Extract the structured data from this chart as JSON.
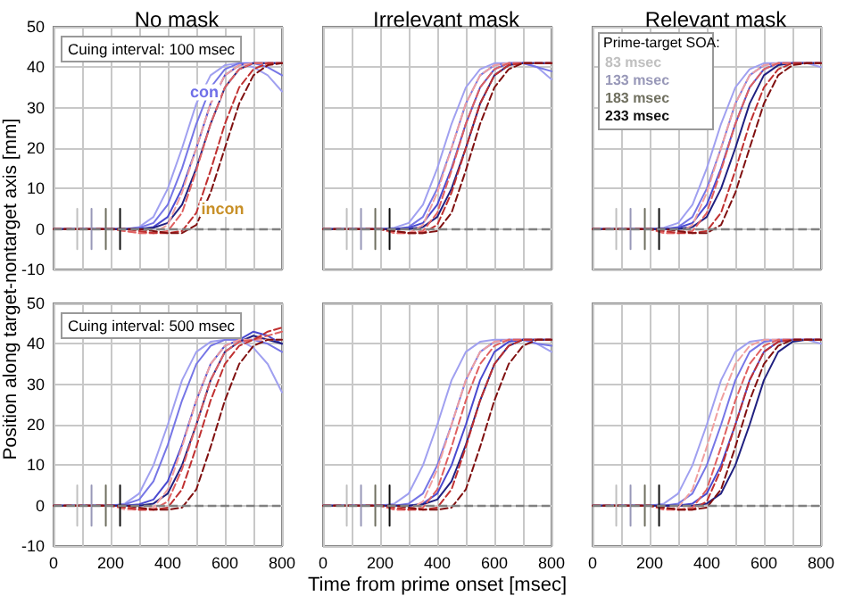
{
  "chart_data": [
    {
      "type": "line",
      "title": "No mask",
      "ylabel": "Position along target-nontarget axis [mm]",
      "x": [
        0,
        100,
        200,
        250,
        300,
        350,
        400,
        450,
        500,
        550,
        600,
        650,
        700,
        750,
        800
      ],
      "xlim": [
        0,
        800
      ],
      "xticks": [
        0,
        {
          "value": 100,
          "label": null
        },
        200,
        {
          "value": 300,
          "label": null
        },
        400,
        {
          "value": 500,
          "label": null
        },
        600,
        {
          "value": 700,
          "label": null
        },
        800
      ],
      "ylim": [
        -10,
        50
      ],
      "yticks": [
        -10,
        0,
        10,
        20,
        30,
        40,
        50
      ],
      "grid": true,
      "marker": "none",
      "tick_labels": "y",
      "annotations": [
        "Cuing interval: 100 msec",
        "con",
        "incon"
      ],
      "ref_lines": [
        {
          "axis": "y",
          "value": 0,
          "color": "#808080",
          "line_style": "dashed"
        }
      ],
      "series": [
        {
          "color": "#a0a0f0",
          "line_style": "solid",
          "values": [
            0,
            0,
            0,
            0,
            0.5,
            3,
            10,
            20,
            31,
            38,
            40.5,
            41,
            40,
            38,
            34
          ]
        },
        {
          "color": "#7676e6",
          "line_style": "solid",
          "values": [
            0,
            0,
            0,
            0,
            0.3,
            1.5,
            6,
            15,
            26,
            35,
            39.5,
            41,
            41,
            40,
            38
          ]
        },
        {
          "color": "#4a4ad0",
          "line_style": "solid",
          "values": [
            0,
            0,
            0,
            0,
            0,
            0.5,
            3,
            10,
            20,
            31,
            38,
            40.5,
            41,
            41,
            41
          ]
        },
        {
          "color": "#202080",
          "line_style": "solid",
          "values": [
            0,
            0,
            0,
            0,
            0,
            0.3,
            1.5,
            6,
            15,
            26,
            35,
            39.5,
            41,
            41,
            41
          ]
        },
        {
          "color": "#f0a0a0",
          "line_style": "dashed",
          "values": [
            0,
            0,
            0,
            -0.5,
            -1,
            -1,
            1,
            9,
            20,
            31,
            38,
            40.5,
            41,
            41,
            41
          ]
        },
        {
          "color": "#e06060",
          "line_style": "dashed",
          "values": [
            0,
            0,
            0,
            -0.5,
            -1,
            -1,
            -0.5,
            4,
            14.5,
            26,
            35,
            39.5,
            41,
            41,
            41
          ]
        },
        {
          "color": "#c03030",
          "line_style": "dashed",
          "values": [
            0,
            0,
            0,
            0,
            -0.5,
            -1,
            -1,
            -0.5,
            4,
            14.5,
            26,
            35,
            39.5,
            41,
            41
          ]
        },
        {
          "color": "#801010",
          "line_style": "dashed",
          "values": [
            0,
            0,
            0,
            0,
            0,
            -0.5,
            -1,
            -1,
            1,
            9,
            20,
            31,
            38,
            40.5,
            41
          ]
        },
        {
          "color": "#c0c0c0",
          "line_style": "solid",
          "x": [
            83,
            83
          ],
          "values": [
            -5,
            5
          ]
        },
        {
          "color": "#9898b8",
          "line_style": "solid",
          "x": [
            133,
            133
          ],
          "values": [
            -5,
            5
          ]
        },
        {
          "color": "#707060",
          "line_style": "solid",
          "x": [
            183,
            183
          ],
          "values": [
            -5,
            5
          ]
        },
        {
          "color": "#101010",
          "line_style": "solid",
          "x": [
            233,
            233
          ],
          "values": [
            -5,
            5
          ]
        }
      ]
    },
    {
      "type": "line",
      "title": "Irrelevant mask",
      "x": [
        0,
        100,
        200,
        250,
        300,
        350,
        400,
        450,
        500,
        550,
        600,
        650,
        700,
        750,
        800
      ],
      "xlim": [
        0,
        800
      ],
      "xticks": [
        0,
        {
          "value": 100,
          "label": null
        },
        200,
        {
          "value": 300,
          "label": null
        },
        400,
        {
          "value": 500,
          "label": null
        },
        600,
        {
          "value": 700,
          "label": null
        },
        800
      ],
      "ylim": [
        -10,
        50
      ],
      "yticks": [
        -10,
        0,
        10,
        20,
        30,
        40,
        50
      ],
      "grid": true,
      "marker": "none",
      "tick_labels": false,
      "ref_lines": [
        {
          "axis": "y",
          "value": 0,
          "color": "#808080",
          "line_style": "dashed"
        }
      ],
      "series": [
        {
          "color": "#a0a0f0",
          "line_style": "solid",
          "values": [
            0,
            0,
            0,
            0.3,
            1.5,
            6,
            15,
            26,
            35,
            39.5,
            41,
            41,
            41,
            40,
            37
          ]
        },
        {
          "color": "#7676e6",
          "line_style": "solid",
          "values": [
            0,
            0,
            0,
            0,
            0.5,
            3,
            10,
            20,
            31,
            38,
            40.5,
            41,
            41,
            40,
            39
          ]
        },
        {
          "color": "#4a4ad0",
          "line_style": "solid",
          "values": [
            0,
            0,
            0,
            0,
            0.3,
            1.5,
            6,
            15,
            26,
            35,
            39.5,
            41,
            41,
            41,
            41
          ]
        },
        {
          "color": "#202080",
          "line_style": "solid",
          "values": [
            0,
            0,
            0,
            0,
            0,
            0.5,
            3,
            10,
            20,
            31,
            38,
            40.5,
            41,
            41,
            41
          ]
        },
        {
          "color": "#f0a0a0",
          "line_style": "dashed",
          "values": [
            0,
            0,
            0,
            -1,
            -1,
            1,
            9,
            20,
            31,
            38,
            40.5,
            41,
            41,
            41,
            41
          ]
        },
        {
          "color": "#e06060",
          "line_style": "dashed",
          "values": [
            0,
            0,
            0,
            -1,
            -1,
            -0.5,
            4,
            14.5,
            26,
            35,
            39.5,
            41,
            41,
            41,
            41
          ]
        },
        {
          "color": "#c03030",
          "line_style": "dashed",
          "values": [
            0,
            0,
            0,
            -0.5,
            -1,
            -1,
            1,
            9,
            20,
            31,
            38,
            40.5,
            41,
            41,
            41
          ]
        },
        {
          "color": "#801010",
          "line_style": "dashed",
          "values": [
            0,
            0,
            0,
            -0.5,
            -1,
            -1,
            -0.5,
            4,
            14.5,
            26,
            35,
            39.5,
            41,
            41,
            41
          ]
        },
        {
          "color": "#c0c0c0",
          "line_style": "solid",
          "x": [
            83,
            83
          ],
          "values": [
            -5,
            5
          ]
        },
        {
          "color": "#9898b8",
          "line_style": "solid",
          "x": [
            133,
            133
          ],
          "values": [
            -5,
            5
          ]
        },
        {
          "color": "#707060",
          "line_style": "solid",
          "x": [
            183,
            183
          ],
          "values": [
            -5,
            5
          ]
        },
        {
          "color": "#101010",
          "line_style": "solid",
          "x": [
            233,
            233
          ],
          "values": [
            -5,
            5
          ]
        }
      ]
    },
    {
      "type": "line",
      "title": "Relevant mask",
      "legend_title": "Prime-target SOA:",
      "legend": "top left",
      "x": [
        0,
        100,
        200,
        250,
        300,
        350,
        400,
        450,
        500,
        550,
        600,
        650,
        700,
        750,
        800
      ],
      "xlim": [
        0,
        800
      ],
      "xticks": [
        0,
        {
          "value": 100,
          "label": null
        },
        200,
        {
          "value": 300,
          "label": null
        },
        400,
        {
          "value": 500,
          "label": null
        },
        600,
        {
          "value": 700,
          "label": null
        },
        800
      ],
      "ylim": [
        -10,
        50
      ],
      "yticks": [
        -10,
        0,
        10,
        20,
        30,
        40,
        50
      ],
      "grid": true,
      "marker": "none",
      "tick_labels": false,
      "ref_lines": [
        {
          "axis": "y",
          "value": 0,
          "color": "#808080",
          "line_style": "dashed"
        }
      ],
      "series": [
        {
          "color": "#a0a0f0",
          "line_style": "solid",
          "values": [
            0,
            0,
            0,
            0.3,
            1.5,
            6,
            15,
            26,
            35,
            39.5,
            41,
            41,
            41,
            41,
            40
          ]
        },
        {
          "color": "#7676e6",
          "line_style": "solid",
          "values": [
            0,
            0,
            0,
            0,
            0.5,
            3,
            10,
            20,
            31,
            38,
            40.5,
            41,
            41,
            41,
            41
          ]
        },
        {
          "color": "#4a4ad0",
          "line_style": "solid",
          "values": [
            0,
            0,
            0,
            0,
            0.3,
            1.5,
            6,
            15,
            26,
            35,
            39.5,
            41,
            41,
            41,
            41
          ]
        },
        {
          "color": "#202080",
          "line_style": "solid",
          "values": [
            0,
            0,
            0,
            0,
            0,
            0.5,
            3,
            10,
            20,
            31,
            38,
            40.5,
            41,
            41,
            41
          ]
        },
        {
          "color": "#f0a0a0",
          "line_style": "dashed",
          "values": [
            0,
            0,
            0,
            -1,
            -1,
            1,
            9,
            20,
            31,
            38,
            40.5,
            41,
            41,
            41,
            41
          ]
        },
        {
          "color": "#e06060",
          "line_style": "dashed",
          "values": [
            0,
            0,
            0,
            -1,
            -1,
            -0.5,
            4,
            14.5,
            26,
            35,
            39.5,
            41,
            41,
            41,
            41
          ]
        },
        {
          "color": "#c03030",
          "line_style": "dashed",
          "values": [
            0,
            0,
            0,
            -0.5,
            -1,
            -1,
            -0.5,
            4,
            14.5,
            26,
            35,
            39.5,
            41,
            41,
            41
          ]
        },
        {
          "color": "#801010",
          "line_style": "dashed",
          "values": [
            0,
            0,
            0,
            0,
            -0.5,
            -1,
            -1,
            1,
            9,
            20,
            31,
            38,
            40.5,
            41,
            41
          ]
        },
        {
          "name": "83 msec",
          "color": "#c0c0c0",
          "line_style": "solid",
          "x": [
            83,
            83
          ],
          "values": [
            -5,
            5
          ]
        },
        {
          "name": "133 msec",
          "color": "#9898b8",
          "line_style": "solid",
          "x": [
            133,
            133
          ],
          "values": [
            -5,
            5
          ]
        },
        {
          "name": "183 msec",
          "color": "#707060",
          "line_style": "solid",
          "x": [
            183,
            183
          ],
          "values": [
            -5,
            5
          ]
        },
        {
          "name": "233 msec",
          "color": "#101010",
          "line_style": "solid",
          "x": [
            233,
            233
          ],
          "values": [
            -5,
            5
          ]
        }
      ]
    },
    {
      "type": "line",
      "x": [
        0,
        100,
        200,
        250,
        300,
        350,
        400,
        450,
        500,
        550,
        600,
        650,
        700,
        750,
        800
      ],
      "xlim": [
        0,
        800
      ],
      "xticks": [
        0,
        {
          "value": 100,
          "label": null
        },
        200,
        {
          "value": 300,
          "label": null
        },
        400,
        {
          "value": 500,
          "label": null
        },
        600,
        {
          "value": 700,
          "label": null
        },
        800
      ],
      "ylim": [
        -10,
        50
      ],
      "yticks": [
        -10,
        0,
        10,
        20,
        30,
        40,
        50
      ],
      "grid": true,
      "marker": "none",
      "annotations": [
        "Cuing interval: 500 msec"
      ],
      "ref_lines": [
        {
          "axis": "y",
          "value": 0,
          "color": "#808080",
          "line_style": "dashed"
        }
      ],
      "series": [
        {
          "color": "#a0a0f0",
          "line_style": "solid",
          "values": [
            0,
            0,
            0,
            0.5,
            3,
            10,
            20,
            31,
            38,
            40.5,
            41,
            41,
            39,
            35,
            28
          ]
        },
        {
          "color": "#7676e6",
          "line_style": "solid",
          "values": [
            0,
            0,
            0,
            0.3,
            1.5,
            6,
            15,
            26,
            35,
            39.5,
            41,
            41,
            41,
            40,
            38
          ]
        },
        {
          "color": "#4a4ad0",
          "line_style": "solid",
          "values": [
            0,
            0,
            0,
            0,
            0.3,
            1.5,
            6,
            15,
            26,
            35,
            39.5,
            41,
            43,
            42,
            40
          ]
        },
        {
          "color": "#202080",
          "line_style": "solid",
          "values": [
            0,
            0,
            0,
            0,
            0,
            0.5,
            3,
            10,
            20,
            31,
            38,
            40.5,
            42,
            41,
            40
          ]
        },
        {
          "color": "#f0a0a0",
          "line_style": "dashed",
          "values": [
            0,
            0,
            0,
            -1,
            -1,
            -0.5,
            4,
            14.5,
            26,
            35,
            39.5,
            41,
            41,
            41,
            41
          ]
        },
        {
          "color": "#e06060",
          "line_style": "dashed",
          "values": [
            0,
            0,
            0,
            -0.5,
            -1,
            -1,
            1,
            9,
            20,
            31,
            38,
            40.5,
            41,
            42,
            43
          ]
        },
        {
          "color": "#c03030",
          "line_style": "dashed",
          "values": [
            0,
            0,
            0,
            -0.5,
            -1,
            -1,
            -0.5,
            4,
            14.5,
            26,
            35,
            39.5,
            41,
            43,
            44
          ]
        },
        {
          "color": "#801010",
          "line_style": "dashed",
          "values": [
            0,
            0,
            0,
            0,
            -0.5,
            -1,
            -1,
            -0.5,
            4,
            14.5,
            26,
            35,
            39.5,
            41,
            41
          ]
        },
        {
          "color": "#c0c0c0",
          "line_style": "solid",
          "x": [
            83,
            83
          ],
          "values": [
            -5,
            5
          ]
        },
        {
          "color": "#9898b8",
          "line_style": "solid",
          "x": [
            133,
            133
          ],
          "values": [
            -5,
            5
          ]
        },
        {
          "color": "#707060",
          "line_style": "solid",
          "x": [
            183,
            183
          ],
          "values": [
            -5,
            5
          ]
        },
        {
          "color": "#101010",
          "line_style": "solid",
          "x": [
            233,
            233
          ],
          "values": [
            -5,
            5
          ]
        }
      ]
    },
    {
      "type": "line",
      "xlabel": "Time from prime onset [msec]",
      "x": [
        0,
        100,
        200,
        250,
        300,
        350,
        400,
        450,
        500,
        550,
        600,
        650,
        700,
        750,
        800
      ],
      "xlim": [
        0,
        800
      ],
      "xticks": [
        0,
        {
          "value": 100,
          "label": null
        },
        200,
        {
          "value": 300,
          "label": null
        },
        400,
        {
          "value": 500,
          "label": null
        },
        600,
        {
          "value": 700,
          "label": null
        },
        800
      ],
      "ylim": [
        -10,
        50
      ],
      "yticks": [
        -10,
        0,
        10,
        20,
        30,
        40,
        50
      ],
      "grid": true,
      "marker": "none",
      "tick_labels": "x",
      "ref_lines": [
        {
          "axis": "y",
          "value": 0,
          "color": "#808080",
          "line_style": "dashed"
        }
      ],
      "series": [
        {
          "color": "#a0a0f0",
          "line_style": "solid",
          "values": [
            0,
            0,
            0,
            0.5,
            3,
            10,
            20,
            31,
            38,
            40.5,
            41,
            41,
            41,
            40,
            38
          ]
        },
        {
          "color": "#7676e6",
          "line_style": "solid",
          "values": [
            0,
            0,
            0,
            0,
            0.5,
            3,
            10,
            20,
            31,
            38,
            40.5,
            41,
            41,
            40,
            39.5
          ]
        },
        {
          "color": "#4a4ad0",
          "line_style": "solid",
          "values": [
            0,
            0,
            0,
            0,
            0,
            0.5,
            3,
            10,
            20,
            31,
            38,
            40.5,
            41,
            41,
            41
          ]
        },
        {
          "color": "#202080",
          "line_style": "solid",
          "values": [
            0,
            0,
            0,
            0,
            0,
            0.3,
            1.5,
            6,
            15,
            26,
            35,
            39.5,
            41,
            41,
            41
          ]
        },
        {
          "color": "#f0a0a0",
          "line_style": "dashed",
          "values": [
            0,
            0,
            0,
            -1,
            -1,
            1,
            9,
            20,
            31,
            38,
            40.5,
            41,
            41,
            41,
            41
          ]
        },
        {
          "color": "#e06060",
          "line_style": "dashed",
          "values": [
            0,
            0,
            0,
            -1,
            -1,
            -0.5,
            4,
            14.5,
            26,
            35,
            39.5,
            41,
            41,
            41,
            41
          ]
        },
        {
          "color": "#c03030",
          "line_style": "dashed",
          "values": [
            0,
            0,
            0,
            -0.5,
            -1,
            -1,
            -0.5,
            4,
            14.5,
            26,
            35,
            39.5,
            41,
            41,
            41
          ]
        },
        {
          "color": "#801010",
          "line_style": "dashed",
          "values": [
            0,
            0,
            0,
            0,
            -0.5,
            -1,
            -1,
            -0.5,
            4,
            14.5,
            26,
            35,
            39.5,
            41,
            41
          ]
        },
        {
          "color": "#c0c0c0",
          "line_style": "solid",
          "x": [
            83,
            83
          ],
          "values": [
            -5,
            5
          ]
        },
        {
          "color": "#9898b8",
          "line_style": "solid",
          "x": [
            133,
            133
          ],
          "values": [
            -5,
            5
          ]
        },
        {
          "color": "#707060",
          "line_style": "solid",
          "x": [
            183,
            183
          ],
          "values": [
            -5,
            5
          ]
        },
        {
          "color": "#101010",
          "line_style": "solid",
          "x": [
            233,
            233
          ],
          "values": [
            -5,
            5
          ]
        }
      ]
    },
    {
      "type": "line",
      "x": [
        0,
        100,
        200,
        250,
        300,
        350,
        400,
        450,
        500,
        550,
        600,
        650,
        700,
        750,
        800
      ],
      "xlim": [
        0,
        800
      ],
      "xticks": [
        0,
        {
          "value": 100,
          "label": null
        },
        200,
        {
          "value": 300,
          "label": null
        },
        400,
        {
          "value": 500,
          "label": null
        },
        600,
        {
          "value": 700,
          "label": null
        },
        800
      ],
      "ylim": [
        -10,
        50
      ],
      "yticks": [
        -10,
        0,
        10,
        20,
        30,
        40,
        50
      ],
      "grid": true,
      "marker": "none",
      "tick_labels": "x",
      "ref_lines": [
        {
          "axis": "y",
          "value": 0,
          "color": "#808080",
          "line_style": "dashed"
        }
      ],
      "series": [
        {
          "color": "#a0a0f0",
          "line_style": "solid",
          "values": [
            0,
            0,
            0,
            0.5,
            3,
            10,
            20,
            31,
            38,
            40.5,
            41,
            41,
            41,
            41,
            40
          ]
        },
        {
          "color": "#7676e6",
          "line_style": "solid",
          "values": [
            0,
            0,
            0,
            0,
            0.5,
            3,
            10,
            20,
            31,
            38,
            40.5,
            41,
            41,
            41,
            41
          ]
        },
        {
          "color": "#4a4ad0",
          "line_style": "solid",
          "values": [
            0,
            0,
            0,
            0,
            0,
            0.5,
            3,
            10,
            20,
            31,
            38,
            40.5,
            41,
            41,
            41
          ]
        },
        {
          "color": "#202080",
          "line_style": "solid",
          "values": [
            0,
            0,
            0,
            0,
            0,
            0,
            0.5,
            3,
            10,
            20,
            31,
            38,
            40.5,
            41,
            41
          ]
        },
        {
          "color": "#f0a0a0",
          "line_style": "dashed",
          "values": [
            0,
            0,
            0,
            -1,
            -0.5,
            4,
            14.5,
            26,
            35,
            39.5,
            41,
            41,
            41,
            41,
            41
          ]
        },
        {
          "color": "#e06060",
          "line_style": "dashed",
          "values": [
            0,
            0,
            0,
            -1,
            -1,
            -0.5,
            4,
            14.5,
            26,
            35,
            39.5,
            41,
            41,
            41,
            41
          ]
        },
        {
          "color": "#c03030",
          "line_style": "dashed",
          "values": [
            0,
            0,
            0,
            -0.5,
            -1,
            -1,
            1,
            9,
            20,
            31,
            38,
            40.5,
            41,
            41,
            41
          ]
        },
        {
          "color": "#801010",
          "line_style": "dashed",
          "values": [
            0,
            0,
            0,
            -0.5,
            -1,
            -1,
            -0.5,
            4,
            14.5,
            26,
            35,
            39.5,
            41,
            41,
            41
          ]
        },
        {
          "color": "#c0c0c0",
          "line_style": "solid",
          "x": [
            83,
            83
          ],
          "values": [
            -5,
            5
          ]
        },
        {
          "color": "#9898b8",
          "line_style": "solid",
          "x": [
            133,
            133
          ],
          "values": [
            -5,
            5
          ]
        },
        {
          "color": "#707060",
          "line_style": "solid",
          "x": [
            183,
            183
          ],
          "values": [
            -5,
            5
          ]
        },
        {
          "color": "#101010",
          "line_style": "solid",
          "x": [
            233,
            233
          ],
          "values": [
            -5,
            5
          ]
        }
      ]
    }
  ]
}
